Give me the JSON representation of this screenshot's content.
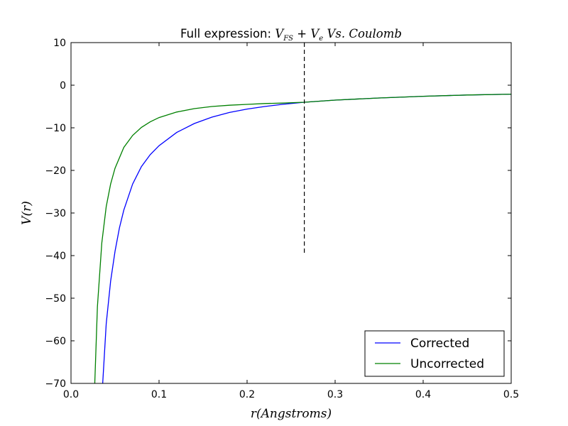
{
  "chart_data": {
    "type": "line",
    "title_prefix": "Full expression: ",
    "title_math": "V_FS + V_e Vs. Coulomb",
    "title_parts": {
      "v": "V",
      "fs": "FS",
      "plus": " + ",
      "e": "e",
      "rest": " Vs. Coulomb"
    },
    "xlabel": "r(Angstroms)",
    "ylabel": "V(r)",
    "xlim": [
      0.0,
      0.5
    ],
    "ylim": [
      -70,
      10
    ],
    "xticks": [
      "0.0",
      "0.1",
      "0.2",
      "0.3",
      "0.4",
      "0.5"
    ],
    "yticks": [
      "10",
      "0",
      "−10",
      "−20",
      "−30",
      "−40",
      "−50",
      "−60",
      "−70"
    ],
    "grid": false,
    "legend_position": "lower-right",
    "vline": {
      "x": 0.265,
      "y_range": [
        -40,
        10
      ],
      "style": "dashed",
      "color": "#000000"
    },
    "series": [
      {
        "name": "Corrected",
        "color": "#0000ff",
        "x": [
          0.036,
          0.04,
          0.045,
          0.05,
          0.055,
          0.06,
          0.07,
          0.08,
          0.09,
          0.1,
          0.12,
          0.14,
          0.16,
          0.18,
          0.2,
          0.22,
          0.24,
          0.265,
          0.3,
          0.35,
          0.4,
          0.45,
          0.5
        ],
        "y": [
          -70,
          -56,
          -46,
          -39,
          -33.5,
          -29.3,
          -23.2,
          -19.1,
          -16.3,
          -14.2,
          -11.1,
          -9.0,
          -7.5,
          -6.4,
          -5.6,
          -5.0,
          -4.5,
          -4.0,
          -3.5,
          -3.0,
          -2.6,
          -2.3,
          -2.1
        ]
      },
      {
        "name": "Uncorrected",
        "color": "#008000",
        "x": [
          0.027,
          0.03,
          0.035,
          0.04,
          0.045,
          0.05,
          0.06,
          0.07,
          0.08,
          0.09,
          0.1,
          0.12,
          0.14,
          0.16,
          0.18,
          0.2,
          0.22,
          0.24,
          0.265,
          0.3,
          0.35,
          0.4,
          0.45,
          0.5
        ],
        "y": [
          -70,
          -52,
          -37,
          -28.5,
          -23.2,
          -19.5,
          -14.6,
          -11.8,
          -9.9,
          -8.6,
          -7.6,
          -6.3,
          -5.5,
          -5.0,
          -4.7,
          -4.5,
          -4.3,
          -4.2,
          -4.0,
          -3.5,
          -3.0,
          -2.6,
          -2.3,
          -2.1
        ]
      }
    ]
  }
}
